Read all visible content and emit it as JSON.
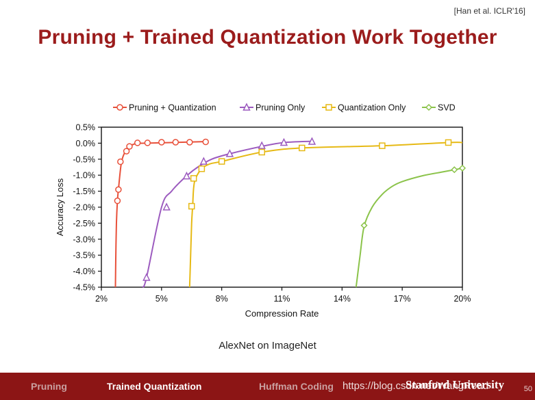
{
  "slide": {
    "citation": "[Han et al. ICLR'16]",
    "title": "Pruning + Trained Quantization Work Together",
    "caption": "AlexNet on ImageNet"
  },
  "footer": {
    "nav": [
      "Pruning",
      "Trained Quantization",
      "Huffman Coding"
    ],
    "active_index": 1,
    "watermark": "https://blog.csdn.net/WangRoad",
    "brand": "Stanford University",
    "page_number": "50"
  },
  "chart_data": {
    "type": "line",
    "xlabel": "Compression Rate",
    "ylabel": "Accuracy Loss",
    "xlim": [
      2,
      20
    ],
    "ylim": [
      -4.5,
      0.5
    ],
    "x_ticks": [
      "2%",
      "5%",
      "8%",
      "11%",
      "14%",
      "17%",
      "20%"
    ],
    "x_tick_values": [
      2,
      5,
      8,
      11,
      14,
      17,
      20
    ],
    "y_ticks": [
      "0.5%",
      "0.0%",
      "-0.5%",
      "-1.0%",
      "-1.5%",
      "-2.0%",
      "-2.5%",
      "-3.0%",
      "-3.5%",
      "-4.0%",
      "-4.5%"
    ],
    "y_tick_values": [
      0.5,
      0,
      -0.5,
      -1,
      -1.5,
      -2,
      -2.5,
      -3,
      -3.5,
      -4,
      -4.5
    ],
    "grid": false,
    "legend_position": "top",
    "series": [
      {
        "name": "Pruning + Quantization",
        "color": "#e8503a",
        "marker": "circle",
        "curve": [
          [
            2.7,
            -4.5
          ],
          [
            2.72,
            -3.5
          ],
          [
            2.75,
            -2.5
          ],
          [
            2.8,
            -1.8
          ],
          [
            2.85,
            -1.45
          ],
          [
            3.0,
            -0.6
          ],
          [
            3.2,
            -0.25
          ],
          [
            3.4,
            -0.1
          ],
          [
            3.8,
            0.0
          ],
          [
            4.2,
            0.0
          ],
          [
            7.3,
            0.05
          ]
        ],
        "points": [
          [
            2.8,
            -1.8
          ],
          [
            2.85,
            -1.45
          ],
          [
            2.95,
            -0.58
          ],
          [
            3.25,
            -0.25
          ],
          [
            3.4,
            -0.1
          ],
          [
            3.8,
            0.01
          ],
          [
            4.3,
            0.01
          ],
          [
            5.0,
            0.03
          ],
          [
            5.7,
            0.03
          ],
          [
            6.4,
            0.03
          ],
          [
            7.2,
            0.04
          ]
        ]
      },
      {
        "name": "Pruning Only",
        "color": "#9c5bbf",
        "marker": "triangle",
        "curve": [
          [
            4.05,
            -4.5
          ],
          [
            4.25,
            -4.2
          ],
          [
            5.0,
            -2.0
          ],
          [
            5.5,
            -1.5
          ],
          [
            6.2,
            -1.05
          ],
          [
            6.8,
            -0.75
          ],
          [
            7.5,
            -0.5
          ],
          [
            8.4,
            -0.33
          ],
          [
            10.0,
            -0.1
          ],
          [
            11.1,
            0.02
          ],
          [
            12.5,
            0.06
          ]
        ],
        "points": [
          [
            4.25,
            -4.2
          ],
          [
            5.25,
            -2.0
          ],
          [
            6.25,
            -1.03
          ],
          [
            7.1,
            -0.57
          ],
          [
            8.4,
            -0.33
          ],
          [
            10.0,
            -0.08
          ],
          [
            11.1,
            0.02
          ],
          [
            12.5,
            0.05
          ]
        ]
      },
      {
        "name": "Quantization Only",
        "color": "#e6b914",
        "marker": "square",
        "curve": [
          [
            6.4,
            -4.5
          ],
          [
            6.45,
            -3.5
          ],
          [
            6.5,
            -2.5
          ],
          [
            6.55,
            -1.97
          ],
          [
            6.6,
            -1.4
          ],
          [
            6.7,
            -1.1
          ],
          [
            7.0,
            -0.8
          ],
          [
            7.4,
            -0.65
          ],
          [
            8.0,
            -0.57
          ],
          [
            10.0,
            -0.28
          ],
          [
            12.0,
            -0.15
          ],
          [
            16.0,
            -0.08
          ],
          [
            19.3,
            0.02
          ],
          [
            20.0,
            0.02
          ]
        ],
        "points": [
          [
            6.5,
            -1.97
          ],
          [
            6.6,
            -1.1
          ],
          [
            7.0,
            -0.8
          ],
          [
            8.0,
            -0.57
          ],
          [
            10.0,
            -0.28
          ],
          [
            12.0,
            -0.15
          ],
          [
            16.0,
            -0.08
          ],
          [
            19.3,
            0.02
          ]
        ]
      },
      {
        "name": "SVD",
        "color": "#8bc34a",
        "marker": "diamond",
        "curve": [
          [
            14.7,
            -4.5
          ],
          [
            14.9,
            -3.5
          ],
          [
            15.1,
            -2.6
          ],
          [
            15.5,
            -2.0
          ],
          [
            16.0,
            -1.6
          ],
          [
            16.5,
            -1.35
          ],
          [
            17.0,
            -1.2
          ],
          [
            18.0,
            -1.02
          ],
          [
            19.0,
            -0.9
          ],
          [
            19.6,
            -0.83
          ],
          [
            20.0,
            -0.78
          ]
        ],
        "points": [
          [
            15.1,
            -2.57
          ],
          [
            19.6,
            -0.83
          ],
          [
            20.0,
            -0.78
          ]
        ]
      }
    ]
  }
}
